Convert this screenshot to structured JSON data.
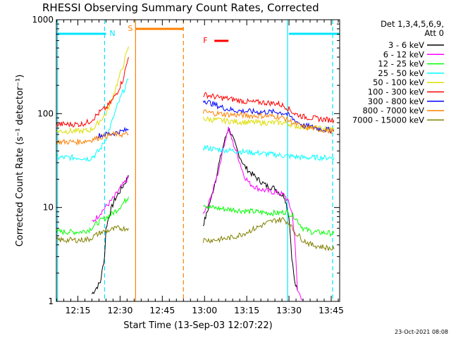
{
  "chart_data": {
    "type": "line",
    "title": "RHESSI Observing Summary Count Rates, Corrected",
    "xlabel": "Start Time (13-Sep-03 12:07:22)",
    "ylabel": "Corrected Count Rate (s⁻¹ detector⁻¹)",
    "footer": "23-Oct-2021 08:08",
    "yscale": "log",
    "xlim_minutes": [
      7.37,
      108.0
    ],
    "ylim": [
      1,
      1000
    ],
    "x_ticks": [
      {
        "label": "12:15",
        "t": 15
      },
      {
        "label": "12:30",
        "t": 30
      },
      {
        "label": "12:45",
        "t": 45
      },
      {
        "label": "13:00",
        "t": 60
      },
      {
        "label": "13:15",
        "t": 75
      },
      {
        "label": "13:30",
        "t": 90
      },
      {
        "label": "13:45",
        "t": 105
      }
    ],
    "y_ticks": [
      {
        "label": "1",
        "v": 1
      },
      {
        "label": "10",
        "v": 10
      },
      {
        "label": "100",
        "v": 100
      },
      {
        "label": "1000",
        "v": 1000
      }
    ],
    "legend": {
      "header": [
        "Det 1,3,4,5,6,9,",
        "Att 0"
      ],
      "placement": "right"
    },
    "flags": [
      {
        "label": "N",
        "color": "#00e5ff",
        "segments": [
          [
            7.5,
            25
          ],
          [
            90,
            108
          ]
        ]
      },
      {
        "label": "S",
        "color": "#ff8000",
        "segments": [
          [
            35.5,
            52.5
          ]
        ]
      },
      {
        "label": "F",
        "color": "#ff0000",
        "segments": [
          [
            63.5,
            68.5
          ]
        ]
      }
    ],
    "markers": [
      {
        "t": 7.8,
        "color": "#00e5ff",
        "style": "solid"
      },
      {
        "t": 24.5,
        "color": "#00e5ff",
        "style": "dashed"
      },
      {
        "t": 89.5,
        "color": "#00e5ff",
        "style": "solid"
      },
      {
        "t": 105.5,
        "color": "#00e5ff",
        "style": "dashed"
      },
      {
        "t": 35.5,
        "color": "#ff8000",
        "style": "solid"
      },
      {
        "t": 52.5,
        "color": "#ff8000",
        "style": "dashed"
      }
    ],
    "series": [
      {
        "name": "3 - 6 keV",
        "color": "#000000",
        "segments": [
          [
            [
              20,
              1.2
            ],
            [
              23,
              1.6
            ],
            [
              24.5,
              3
            ],
            [
              25,
              6
            ],
            [
              26.5,
              9
            ],
            [
              28,
              12
            ],
            [
              30,
              15
            ],
            [
              32,
              19
            ],
            [
              33,
              22
            ]
          ],
          [
            [
              59.5,
              6.5
            ],
            [
              61,
              9
            ],
            [
              63,
              15
            ],
            [
              65,
              28
            ],
            [
              67,
              50
            ],
            [
              68.5,
              70
            ],
            [
              70,
              55
            ],
            [
              72,
              38
            ],
            [
              74,
              28
            ],
            [
              76,
              24
            ],
            [
              79,
              20
            ],
            [
              82,
              17
            ],
            [
              85,
              16
            ],
            [
              87,
              14
            ],
            [
              88.5,
              13
            ],
            [
              89,
              11
            ],
            [
              90,
              8
            ],
            [
              91,
              3
            ],
            [
              92,
              1.6
            ],
            [
              93,
              1.3
            ]
          ]
        ]
      },
      {
        "name": "6 - 12 keV",
        "color": "#ff00ff",
        "segments": [
          [
            [
              20,
              7
            ],
            [
              22,
              8
            ],
            [
              24,
              9.5
            ],
            [
              26,
              11
            ],
            [
              28,
              13
            ],
            [
              30,
              16
            ],
            [
              32,
              19
            ],
            [
              33,
              21
            ]
          ],
          [
            [
              59.5,
              8.5
            ],
            [
              61,
              10
            ],
            [
              63,
              15
            ],
            [
              65,
              25
            ],
            [
              67,
              48
            ],
            [
              68.5,
              70
            ],
            [
              70,
              50
            ],
            [
              72,
              34
            ],
            [
              74,
              22
            ],
            [
              76,
              18
            ],
            [
              79,
              16
            ],
            [
              82,
              15
            ],
            [
              85,
              14.5
            ],
            [
              87,
              14
            ],
            [
              88.5,
              13.5
            ],
            [
              90,
              11
            ],
            [
              91,
              9
            ],
            [
              92,
              5
            ],
            [
              93,
              1.3
            ],
            [
              95,
              1.05
            ]
          ]
        ]
      },
      {
        "name": "12 - 25 keV",
        "color": "#00ff00",
        "segments": [
          [
            [
              7.5,
              5.5
            ],
            [
              12,
              5.5
            ],
            [
              16,
              5.5
            ],
            [
              19,
              5.8
            ],
            [
              21,
              6.5
            ],
            [
              23,
              7.2
            ],
            [
              25,
              7.8
            ],
            [
              27,
              8.5
            ],
            [
              29,
              9.5
            ],
            [
              31,
              11
            ],
            [
              33,
              13
            ]
          ],
          [
            [
              59.5,
              11
            ],
            [
              62,
              10
            ],
            [
              66,
              9.7
            ],
            [
              70,
              9.5
            ],
            [
              74,
              9.2
            ],
            [
              78,
              9
            ],
            [
              82,
              8.8
            ],
            [
              86,
              8.7
            ],
            [
              89,
              9
            ],
            [
              92,
              8
            ],
            [
              95,
              6
            ],
            [
              98,
              5.5
            ],
            [
              102,
              5.4
            ],
            [
              106,
              5.3
            ]
          ]
        ]
      },
      {
        "name": "25 - 50 keV",
        "color": "#00ffff",
        "segments": [
          [
            [
              7.5,
              34
            ],
            [
              12,
              34
            ],
            [
              16,
              34
            ],
            [
              19,
              33
            ],
            [
              21,
              36
            ],
            [
              23,
              42
            ],
            [
              25,
              55
            ],
            [
              27,
              80
            ],
            [
              29,
              120
            ],
            [
              31,
              170
            ],
            [
              33,
              230
            ]
          ],
          [
            [
              59.5,
              44
            ],
            [
              63,
              42
            ],
            [
              67,
              41
            ],
            [
              71,
              40
            ],
            [
              75,
              39
            ],
            [
              79,
              38
            ],
            [
              83,
              37
            ],
            [
              87,
              36
            ],
            [
              91,
              35
            ],
            [
              95,
              34
            ],
            [
              99,
              34
            ],
            [
              103,
              34
            ],
            [
              106,
              34
            ]
          ]
        ]
      },
      {
        "name": "50 - 100 keV",
        "color": "#dddd00",
        "segments": [
          [
            [
              7.5,
              65
            ],
            [
              12,
              65
            ],
            [
              16,
              65
            ],
            [
              19,
              66
            ],
            [
              21,
              72
            ],
            [
              23,
              85
            ],
            [
              25,
              100
            ],
            [
              27,
              140
            ],
            [
              29,
              210
            ],
            [
              31,
              320
            ],
            [
              33,
              520
            ]
          ],
          [
            [
              59.5,
              88
            ],
            [
              63,
              86
            ],
            [
              67,
              84
            ],
            [
              71,
              82
            ],
            [
              75,
              81
            ],
            [
              79,
              80
            ],
            [
              83,
              80
            ],
            [
              86,
              80
            ],
            [
              88,
              80
            ],
            [
              90,
              78
            ],
            [
              93,
              73
            ],
            [
              96,
              72
            ],
            [
              100,
              70
            ],
            [
              106,
              68
            ]
          ]
        ]
      },
      {
        "name": "100 - 300 keV",
        "color": "#ff0000",
        "segments": [
          [
            [
              7.5,
              77
            ],
            [
              12,
              77
            ],
            [
              16,
              77
            ],
            [
              19,
              82
            ],
            [
              21,
              92
            ],
            [
              23,
              105
            ],
            [
              25,
              115
            ],
            [
              27,
              135
            ],
            [
              29,
              170
            ],
            [
              31,
              230
            ],
            [
              33,
              400
            ]
          ],
          [
            [
              59.5,
              160
            ],
            [
              62,
              155
            ],
            [
              65,
              148
            ],
            [
              68,
              145
            ],
            [
              71,
              140
            ],
            [
              74,
              135
            ],
            [
              77,
              132
            ],
            [
              80,
              132
            ],
            [
              83,
              130
            ],
            [
              86,
              128
            ],
            [
              89,
              118
            ],
            [
              92,
              100
            ],
            [
              95,
              93
            ],
            [
              98,
              90
            ],
            [
              102,
              87
            ],
            [
              106,
              85
            ]
          ]
        ]
      },
      {
        "name": "300 - 800 keV",
        "color": "#0000ff",
        "segments": [
          [
            [
              22,
              58
            ],
            [
              25,
              60
            ],
            [
              28,
              62
            ],
            [
              31,
              65
            ],
            [
              33,
              68
            ]
          ],
          [
            [
              59.5,
              140
            ],
            [
              62,
              130
            ],
            [
              65,
              120
            ],
            [
              68,
              112
            ],
            [
              71,
              108
            ],
            [
              74,
              106
            ],
            [
              77,
              105
            ],
            [
              80,
              104
            ],
            [
              83,
              104
            ],
            [
              86,
              104
            ],
            [
              89,
              100
            ],
            [
              92,
              85
            ],
            [
              95,
              75
            ],
            [
              98,
              72
            ],
            [
              102,
              68
            ],
            [
              106,
              66
            ]
          ]
        ]
      },
      {
        "name": "800 - 7000 keV",
        "color": "#ff8000",
        "segments": [
          [
            [
              7.5,
              50
            ],
            [
              12,
              50
            ],
            [
              16,
              50
            ],
            [
              19,
              52
            ],
            [
              21,
              54
            ],
            [
              23,
              56
            ],
            [
              25,
              58
            ],
            [
              28,
              60
            ],
            [
              31,
              60
            ],
            [
              33,
              60
            ]
          ],
          [
            [
              59.5,
              105
            ],
            [
              62,
              102
            ],
            [
              65,
              100
            ],
            [
              68,
              98
            ],
            [
              71,
              97
            ],
            [
              74,
              96
            ],
            [
              77,
              95
            ],
            [
              80,
              95
            ],
            [
              83,
              94
            ],
            [
              86,
              93
            ],
            [
              89,
              88
            ],
            [
              92,
              78
            ],
            [
              95,
              72
            ],
            [
              98,
              70
            ],
            [
              102,
              67
            ],
            [
              106,
              64
            ]
          ]
        ]
      },
      {
        "name": "7000 - 15000 keV",
        "color": "#808000",
        "segments": [
          [
            [
              7.5,
              4.5
            ],
            [
              12,
              4.5
            ],
            [
              16,
              4.5
            ],
            [
              19,
              4.6
            ],
            [
              21,
              5
            ],
            [
              23,
              5.4
            ],
            [
              25,
              5.6
            ],
            [
              27,
              5.8
            ],
            [
              29,
              6
            ],
            [
              31,
              6
            ],
            [
              33,
              6
            ]
          ],
          [
            [
              59.5,
              4.5
            ],
            [
              63,
              4.5
            ],
            [
              66,
              4.6
            ],
            [
              70,
              4.8
            ],
            [
              74,
              5.3
            ],
            [
              78,
              6
            ],
            [
              82,
              6.8
            ],
            [
              85,
              7.3
            ],
            [
              88,
              7.5
            ],
            [
              90,
              6.8
            ],
            [
              92,
              5.5
            ],
            [
              95,
              4.5
            ],
            [
              98,
              4
            ],
            [
              102,
              3.8
            ],
            [
              106,
              3.6
            ]
          ]
        ]
      }
    ]
  }
}
